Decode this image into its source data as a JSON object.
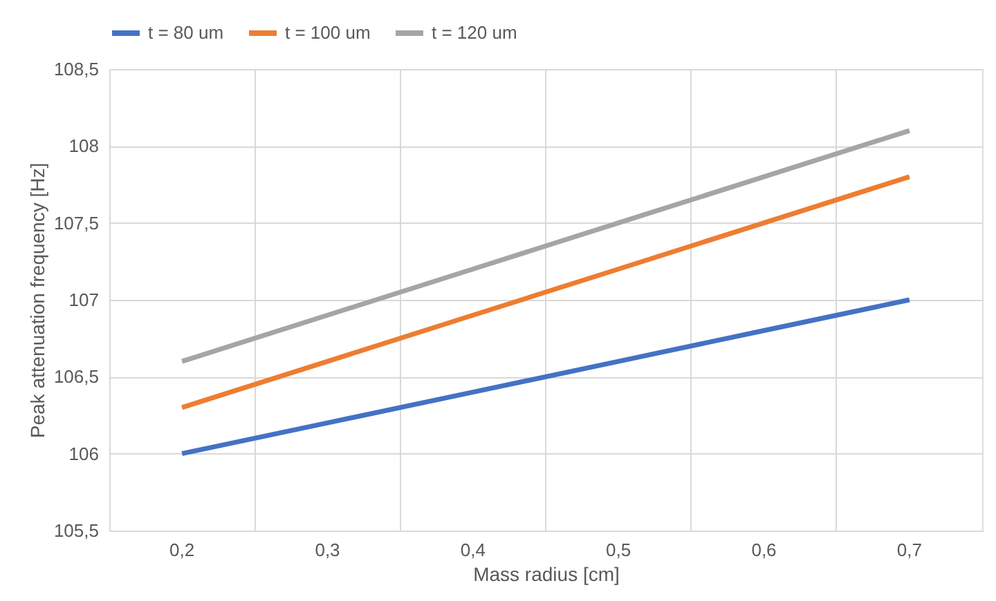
{
  "chart_data": {
    "type": "line",
    "xlabel": "Mass radius [cm]",
    "ylabel": "Peak attenuation frequency [Hz]",
    "categories": [
      "0,2",
      "0,3",
      "0,4",
      "0,5",
      "0,6",
      "0,7"
    ],
    "series": [
      {
        "name": "t = 80 um",
        "color": "#4472c4",
        "values": [
          106.0,
          106.2,
          106.4,
          106.6,
          106.8,
          107.0
        ]
      },
      {
        "name": "t = 100 um",
        "color": "#ed7d31",
        "values": [
          106.3,
          106.6,
          106.9,
          107.2,
          107.5,
          107.8
        ]
      },
      {
        "name": "t = 120 um",
        "color": "#a5a5a5",
        "values": [
          106.6,
          106.9,
          107.2,
          107.5,
          107.8,
          108.1
        ]
      }
    ],
    "ylim": [
      105.5,
      108.5
    ],
    "yticks": [
      {
        "value": 105.5,
        "label": "105,5"
      },
      106,
      {
        "value": 106.5,
        "label": "106,5"
      },
      107,
      {
        "value": 107.5,
        "label": "107,5"
      },
      108,
      {
        "value": 108.5,
        "label": "108,5"
      }
    ],
    "grid": true,
    "legend": "top",
    "marker": "none",
    "line_style": "solid"
  }
}
